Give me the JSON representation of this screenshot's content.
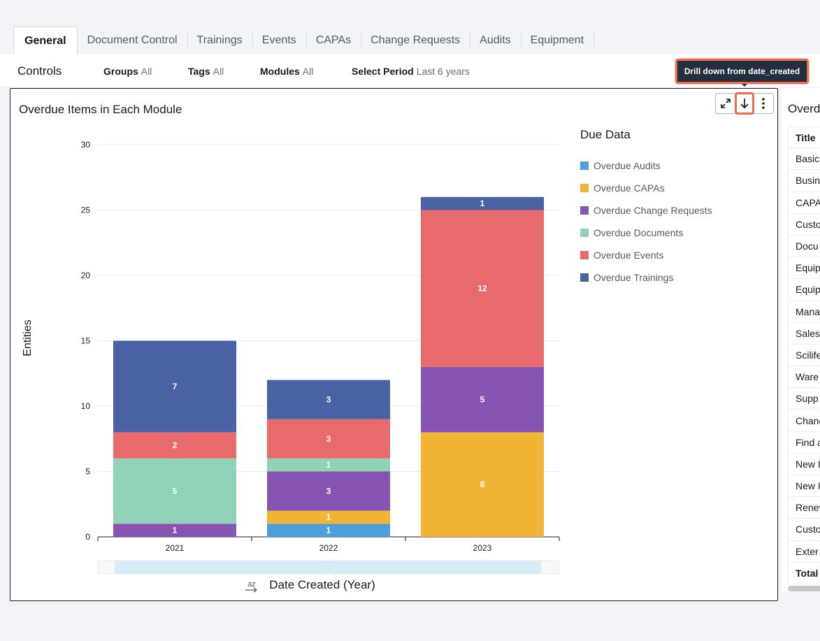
{
  "tabs": [
    {
      "label": "General"
    },
    {
      "label": "Document Control"
    },
    {
      "label": "Trainings"
    },
    {
      "label": "Events"
    },
    {
      "label": "CAPAs"
    },
    {
      "label": "Change Requests"
    },
    {
      "label": "Audits"
    },
    {
      "label": "Equipment"
    }
  ],
  "controls": {
    "title": "Controls",
    "groups": {
      "label": "Groups",
      "value": "All"
    },
    "tags": {
      "label": "Tags",
      "value": "All"
    },
    "modules": {
      "label": "Modules",
      "value": "All"
    },
    "period": {
      "label": "Select Period",
      "value": "Last 6 years"
    }
  },
  "tooltip": {
    "text": "Drill down from date_created"
  },
  "panel": {
    "title": "Overdue Items in Each Module",
    "icons": [
      "expand-icon",
      "drill-down-arrow-icon",
      "more-vertical-icon"
    ]
  },
  "chart_data": {
    "type": "bar",
    "stacked": true,
    "categories": [
      "2021",
      "2022",
      "2023"
    ],
    "series": [
      {
        "name": "Overdue Audits",
        "color": "#4c9fdc",
        "values": [
          0,
          1,
          0
        ]
      },
      {
        "name": "Overdue CAPAs",
        "color": "#f1b435",
        "values": [
          0,
          1,
          8
        ]
      },
      {
        "name": "Overdue Change Requests",
        "color": "#8654b2",
        "values": [
          1,
          3,
          5
        ]
      },
      {
        "name": "Overdue Documents",
        "color": "#8fd2b7",
        "values": [
          5,
          1,
          0
        ]
      },
      {
        "name": "Overdue Events",
        "color": "#e96a6c",
        "values": [
          2,
          3,
          12
        ]
      },
      {
        "name": "Overdue Trainings",
        "color": "#4a62a4",
        "values": [
          7,
          3,
          1
        ]
      }
    ],
    "ylim": [
      0,
      30
    ],
    "yticks": [
      0,
      5,
      10,
      15,
      20,
      25,
      30
    ],
    "ylabel": "Entities",
    "xlabel": "Date Created (Year)",
    "legend_title": "Due Data",
    "legend_position": "right",
    "grid": true
  },
  "side_table": {
    "title": "Overd",
    "header": "Title",
    "rows": [
      "Basic",
      "Busin",
      "CAPA",
      "Custo",
      "Docu",
      "Equip",
      "Equip",
      "Mana",
      "Sales",
      "Scilife",
      "Ware",
      "Supp",
      "Chanc",
      "Find a",
      "New I",
      "New I",
      "Renev",
      "Custo",
      "Exter"
    ],
    "total": "Total"
  }
}
